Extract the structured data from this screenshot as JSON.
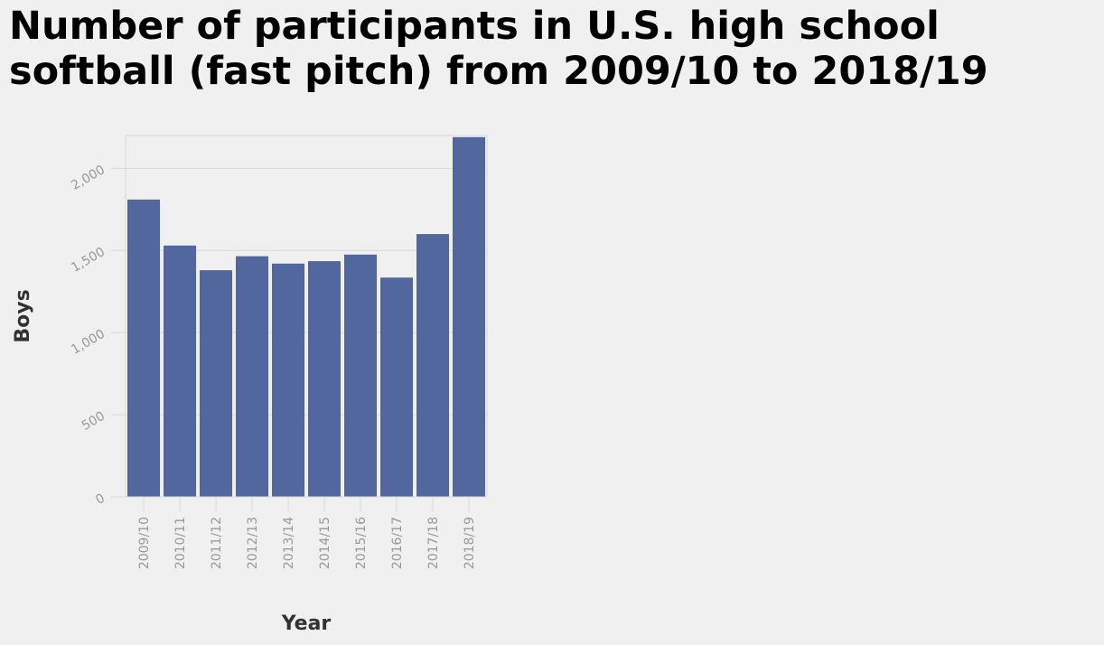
{
  "chart_data": {
    "type": "bar",
    "title": "Number of participants in U.S. high school softball (fast pitch) from 2009/10 to 2018/19",
    "xlabel": "Year",
    "ylabel": "Boys",
    "categories": [
      "2009/10",
      "2010/11",
      "2011/12",
      "2012/13",
      "2013/14",
      "2014/15",
      "2015/16",
      "2016/17",
      "2017/18",
      "2018/19"
    ],
    "values": [
      1810,
      1530,
      1380,
      1465,
      1420,
      1435,
      1475,
      1335,
      1600,
      2190
    ],
    "ylim": [
      0,
      2200
    ],
    "yticks": [
      0,
      500,
      1000,
      1500,
      2000
    ],
    "ytick_labels": [
      "0",
      "500",
      "1,000",
      "1,500",
      "2,000"
    ],
    "grid": "horizontal",
    "legend": "none",
    "colors": {
      "bar": "#52679e",
      "grid": "#d8d8d8",
      "tick_text": "#999999",
      "axis_text": "#333333",
      "background": "#f0f0f0"
    }
  }
}
